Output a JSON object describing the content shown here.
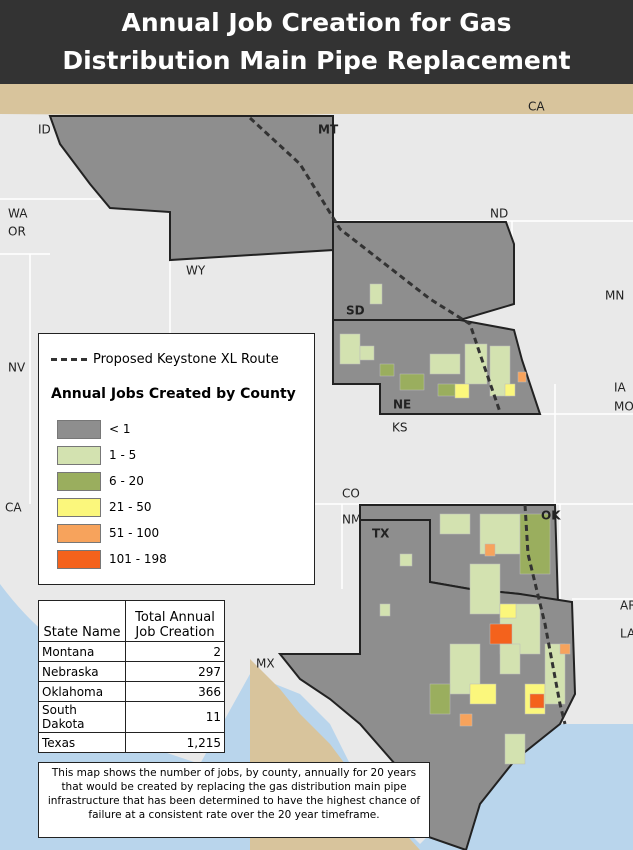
{
  "header": {
    "title": "Annual Job Creation for Gas Distribution Main Pipe Replacement"
  },
  "map": {
    "labels": [
      "CA",
      "ID",
      "MT",
      "WA",
      "OR",
      "WY",
      "ND",
      "SD",
      "MN",
      "NE",
      "NV",
      "IA",
      "MO",
      "KS",
      "CO",
      "CA",
      "NM",
      "OK",
      "TX",
      "AR",
      "LA",
      "MX"
    ]
  },
  "legend": {
    "route_label": "Proposed Keystone XL Route",
    "title": "Annual Jobs Created by County",
    "classes": [
      {
        "label": "< 1",
        "color": "#8e8e8e"
      },
      {
        "label": "1 - 5",
        "color": "#d3e2b0"
      },
      {
        "label": "6 - 20",
        "color": "#9aae5e"
      },
      {
        "label": "21 - 50",
        "color": "#fbf77c"
      },
      {
        "label": "51 - 100",
        "color": "#f7a35c"
      },
      {
        "label": "101 - 198",
        "color": "#f4621c"
      }
    ]
  },
  "table": {
    "headers": [
      "State Name",
      "Total Annual Job Creation"
    ],
    "rows": [
      [
        "Montana",
        "2"
      ],
      [
        "Nebraska",
        "297"
      ],
      [
        "Oklahoma",
        "366"
      ],
      [
        "South Dakota",
        "11"
      ],
      [
        "Texas",
        "1,215"
      ]
    ]
  },
  "note": "This map shows the number of jobs, by county, annually for 20 years that would be created by replacing the gas distribution main pipe infrastructure that has been determined to have the highest chance of failure at a consistent rate over the 20 year timeframe."
}
